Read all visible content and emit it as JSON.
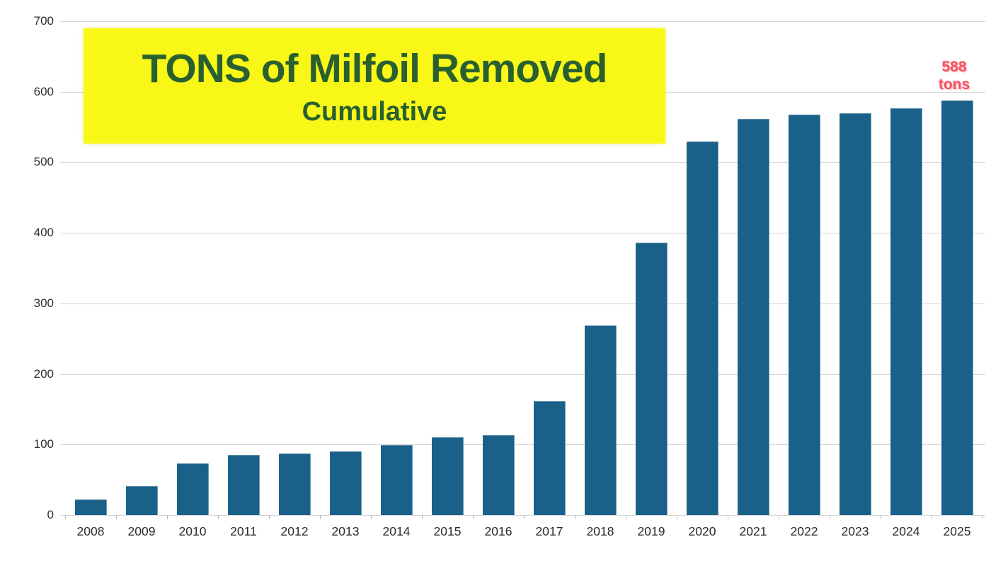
{
  "chart_data": {
    "type": "bar",
    "title": "TONS of Milfoil Removed",
    "subtitle": "Cumulative",
    "categories": [
      "2008",
      "2009",
      "2010",
      "2011",
      "2012",
      "2013",
      "2014",
      "2015",
      "2016",
      "2017",
      "2018",
      "2019",
      "2020",
      "2021",
      "2022",
      "2023",
      "2024",
      "2025"
    ],
    "values": [
      22,
      41,
      73,
      85,
      87,
      90,
      99,
      110,
      113,
      161,
      269,
      386,
      530,
      562,
      568,
      570,
      577,
      588
    ],
    "xlabel": "",
    "ylabel": "",
    "ylim": [
      0,
      700
    ],
    "yticks": [
      0,
      100,
      200,
      300,
      400,
      500,
      600,
      700
    ],
    "grid": true,
    "legend": false,
    "annotation": {
      "lines": [
        "588",
        "tons"
      ],
      "target_category": "2025"
    },
    "colors": {
      "bar": "#1a618a",
      "title_background": "#f8f718",
      "title_text": "#2a6030",
      "annotation_text": "#f4515f",
      "gridline": "#d6d6d6",
      "axis_label": "#2b2b2b"
    }
  }
}
